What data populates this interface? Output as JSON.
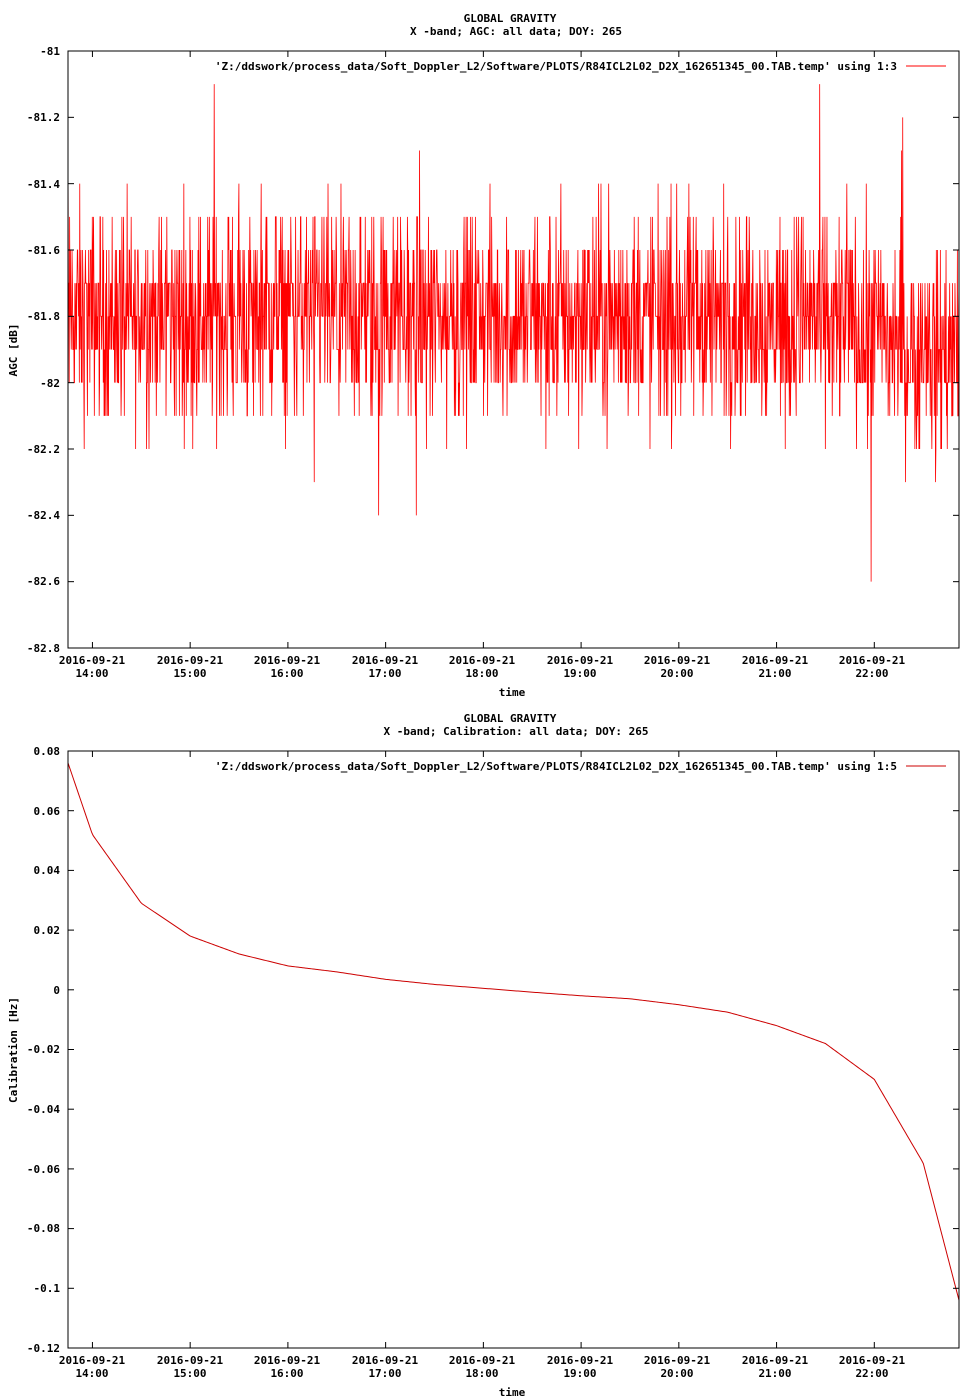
{
  "charts": [
    {
      "title_line1": "GLOBAL GRAVITY",
      "title_line2": "X -band; AGC: all data; DOY: 265",
      "legend": "'Z:/ddswork/process_data/Soft_Doppler_L2/Software/PLOTS/R84ICL2L02_D2X_162651345_00.TAB.temp' using 1:3",
      "ylabel": "AGC [dB]",
      "xlabel": "time",
      "line_color": "#ff0000",
      "y_tick_labels": [
        "-81",
        "-81.2",
        "-81.4",
        "-81.6",
        "-81.8",
        "-82",
        "-82.2",
        "-82.4",
        "-82.6",
        "-82.8"
      ],
      "x_tick_dates": [
        "2016-09-21",
        "2016-09-21",
        "2016-09-21",
        "2016-09-21",
        "2016-09-21",
        "2016-09-21",
        "2016-09-21",
        "2016-09-21",
        "2016-09-21"
      ],
      "x_tick_times": [
        "14:00",
        "15:00",
        "16:00",
        "17:00",
        "18:00",
        "19:00",
        "20:00",
        "21:00",
        "22:00"
      ]
    },
    {
      "title_line1": "GLOBAL GRAVITY",
      "title_line2": "X -band; Calibration: all data; DOY: 265",
      "legend": "'Z:/ddswork/process_data/Soft_Doppler_L2/Software/PLOTS/R84ICL2L02_D2X_162651345_00.TAB.temp' using 1:5",
      "ylabel": "Calibration [Hz]",
      "xlabel": "time",
      "line_color": "#cc0000",
      "y_tick_labels": [
        "0.08",
        "0.06",
        "0.04",
        "0.02",
        "0",
        "-0.02",
        "-0.04",
        "-0.06",
        "-0.08",
        "-0.1",
        "-0.12"
      ],
      "x_tick_dates": [
        "2016-09-21",
        "2016-09-21",
        "2016-09-21",
        "2016-09-21",
        "2016-09-21",
        "2016-09-21",
        "2016-09-21",
        "2016-09-21",
        "2016-09-21"
      ],
      "x_tick_times": [
        "14:00",
        "15:00",
        "16:00",
        "17:00",
        "18:00",
        "19:00",
        "20:00",
        "21:00",
        "22:00"
      ]
    }
  ],
  "chart_data": [
    {
      "type": "line",
      "title": "GLOBAL GRAVITY",
      "subtitle": "X -band; AGC: all data; DOY: 265",
      "xlabel": "time",
      "ylabel": "AGC [dB]",
      "xlim": [
        "2016-09-21 13:45",
        "2016-09-21 22:52"
      ],
      "ylim": [
        -82.8,
        -81
      ],
      "series": [
        {
          "name": "'Z:/ddswork/process_data/Soft_Doppler_L2/Software/PLOTS/R84ICL2L02_D2X_162651345_00.TAB.temp' using 1:3",
          "x": [
            "2016-09-21 13:45",
            "2016-09-21 14:00",
            "2016-09-21 14:30",
            "2016-09-21 15:00",
            "2016-09-21 15:30",
            "2016-09-21 16:00",
            "2016-09-21 16:30",
            "2016-09-21 17:00",
            "2016-09-21 17:30",
            "2016-09-21 18:00",
            "2016-09-21 18:30",
            "2016-09-21 19:00",
            "2016-09-21 19:30",
            "2016-09-21 20:00",
            "2016-09-21 20:30",
            "2016-09-21 21:00",
            "2016-09-21 21:30",
            "2016-09-21 22:00",
            "2016-09-21 22:30",
            "2016-09-21 22:52"
          ],
          "y": [
            -81.8,
            -81.8,
            -81.8,
            -81.8,
            -81.8,
            -81.8,
            -81.8,
            -81.8,
            -81.8,
            -81.8,
            -81.8,
            -81.8,
            -81.8,
            -81.8,
            -81.8,
            -81.8,
            -81.8,
            -81.85,
            -81.9,
            -81.9
          ],
          "min": -82.7,
          "max": -81.0
        }
      ]
    },
    {
      "type": "line",
      "title": "GLOBAL GRAVITY",
      "subtitle": "X -band; Calibration: all data; DOY: 265",
      "xlabel": "time",
      "ylabel": "Calibration [Hz]",
      "xlim": [
        "2016-09-21 13:45",
        "2016-09-21 22:52"
      ],
      "ylim": [
        -0.12,
        0.08
      ],
      "series": [
        {
          "name": "'Z:/ddswork/process_data/Soft_Doppler_L2/Software/PLOTS/R84ICL2L02_D2X_162651345_00.TAB.temp' using 1:5",
          "x": [
            "2016-09-21 13:45",
            "2016-09-21 14:00",
            "2016-09-21 14:30",
            "2016-09-21 15:00",
            "2016-09-21 15:30",
            "2016-09-21 16:00",
            "2016-09-21 16:30",
            "2016-09-21 17:00",
            "2016-09-21 17:30",
            "2016-09-21 18:00",
            "2016-09-21 18:30",
            "2016-09-21 19:00",
            "2016-09-21 19:30",
            "2016-09-21 20:00",
            "2016-09-21 20:30",
            "2016-09-21 21:00",
            "2016-09-21 21:30",
            "2016-09-21 22:00",
            "2016-09-21 22:30",
            "2016-09-21 22:52"
          ],
          "y": [
            0.076,
            0.052,
            0.029,
            0.018,
            0.012,
            0.008,
            0.006,
            0.0035,
            0.0018,
            0.0005,
            -0.0008,
            -0.002,
            -0.003,
            -0.005,
            -0.0075,
            -0.012,
            -0.018,
            -0.03,
            -0.058,
            -0.104
          ]
        }
      ]
    }
  ]
}
